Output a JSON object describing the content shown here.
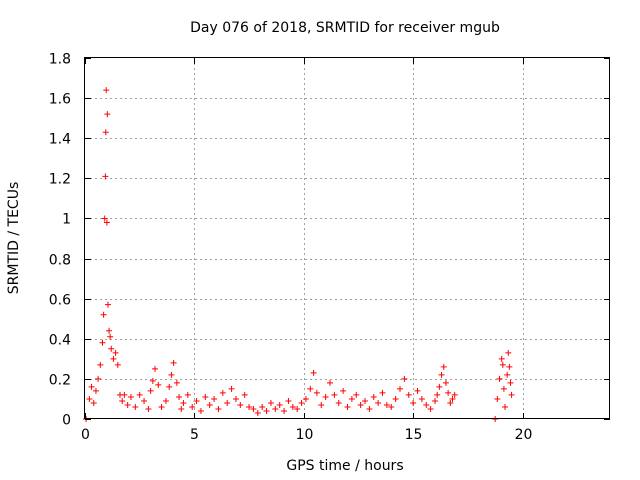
{
  "chart_data": {
    "type": "scatter",
    "title": "Day 076 of 2018, SRMTID for receiver mgub",
    "xlabel": "GPS time / hours",
    "ylabel": "SRMTID / TECUs",
    "xlim": [
      0,
      24
    ],
    "ylim": [
      0,
      1.8
    ],
    "xticks": [
      0,
      5,
      10,
      15,
      20
    ],
    "yticks": [
      0,
      0.2,
      0.4,
      0.6,
      0.8,
      1,
      1.2,
      1.4,
      1.6,
      1.8
    ],
    "xtick_labels": [
      "0",
      "5",
      "10",
      "15",
      "20"
    ],
    "ytick_labels": [
      "0",
      "0.2",
      "0.4",
      "0.6",
      "0.8",
      "1",
      "1.2",
      "1.4",
      "1.6",
      "1.8"
    ],
    "grid": true,
    "marker": "+",
    "color": "#ff0000",
    "series": [
      {
        "name": "SRMTID",
        "x": [
          0.05,
          0.2,
          0.3,
          0.4,
          0.5,
          0.6,
          0.7,
          0.8,
          0.85,
          0.9,
          0.93,
          0.95,
          0.97,
          1.0,
          1.02,
          1.05,
          1.1,
          1.15,
          1.2,
          1.3,
          1.4,
          1.5,
          1.6,
          1.7,
          1.8,
          1.95,
          2.1,
          2.3,
          2.5,
          2.7,
          2.9,
          3.0,
          3.1,
          3.2,
          3.35,
          3.5,
          3.7,
          3.85,
          3.95,
          4.05,
          4.2,
          4.3,
          4.4,
          4.5,
          4.7,
          4.9,
          5.1,
          5.3,
          5.5,
          5.7,
          5.9,
          6.1,
          6.3,
          6.5,
          6.7,
          6.9,
          7.1,
          7.3,
          7.5,
          7.7,
          7.9,
          8.1,
          8.3,
          8.5,
          8.7,
          8.9,
          9.1,
          9.3,
          9.5,
          9.7,
          9.9,
          10.1,
          10.3,
          10.45,
          10.6,
          10.8,
          11.0,
          11.2,
          11.4,
          11.6,
          11.8,
          12.0,
          12.2,
          12.4,
          12.6,
          12.8,
          13.0,
          13.2,
          13.4,
          13.6,
          13.8,
          14.0,
          14.2,
          14.4,
          14.6,
          14.8,
          15.0,
          15.2,
          15.4,
          15.6,
          15.8,
          16.0,
          16.1,
          16.2,
          16.3,
          16.4,
          16.5,
          16.6,
          16.7,
          16.8,
          16.9,
          18.75,
          18.85,
          18.95,
          19.05,
          19.1,
          19.15,
          19.2,
          19.3,
          19.35,
          19.4,
          19.45,
          19.5
        ],
        "y": [
          0.0,
          0.1,
          0.16,
          0.08,
          0.14,
          0.2,
          0.27,
          0.38,
          0.52,
          1.0,
          1.21,
          1.43,
          1.64,
          0.98,
          1.52,
          0.57,
          0.44,
          0.41,
          0.35,
          0.3,
          0.33,
          0.27,
          0.12,
          0.09,
          0.12,
          0.07,
          0.11,
          0.06,
          0.12,
          0.09,
          0.05,
          0.14,
          0.19,
          0.25,
          0.17,
          0.06,
          0.09,
          0.16,
          0.22,
          0.28,
          0.18,
          0.11,
          0.05,
          0.08,
          0.12,
          0.06,
          0.09,
          0.04,
          0.11,
          0.07,
          0.1,
          0.05,
          0.13,
          0.08,
          0.15,
          0.1,
          0.07,
          0.12,
          0.06,
          0.05,
          0.03,
          0.06,
          0.04,
          0.08,
          0.05,
          0.07,
          0.04,
          0.09,
          0.06,
          0.05,
          0.08,
          0.1,
          0.15,
          0.23,
          0.13,
          0.07,
          0.11,
          0.18,
          0.12,
          0.08,
          0.14,
          0.06,
          0.1,
          0.12,
          0.07,
          0.09,
          0.05,
          0.11,
          0.08,
          0.13,
          0.07,
          0.06,
          0.1,
          0.15,
          0.2,
          0.12,
          0.08,
          0.14,
          0.1,
          0.07,
          0.05,
          0.09,
          0.12,
          0.16,
          0.22,
          0.26,
          0.18,
          0.13,
          0.08,
          0.1,
          0.12,
          0.0,
          0.1,
          0.2,
          0.3,
          0.27,
          0.15,
          0.06,
          0.22,
          0.33,
          0.26,
          0.18,
          0.12
        ]
      }
    ]
  }
}
